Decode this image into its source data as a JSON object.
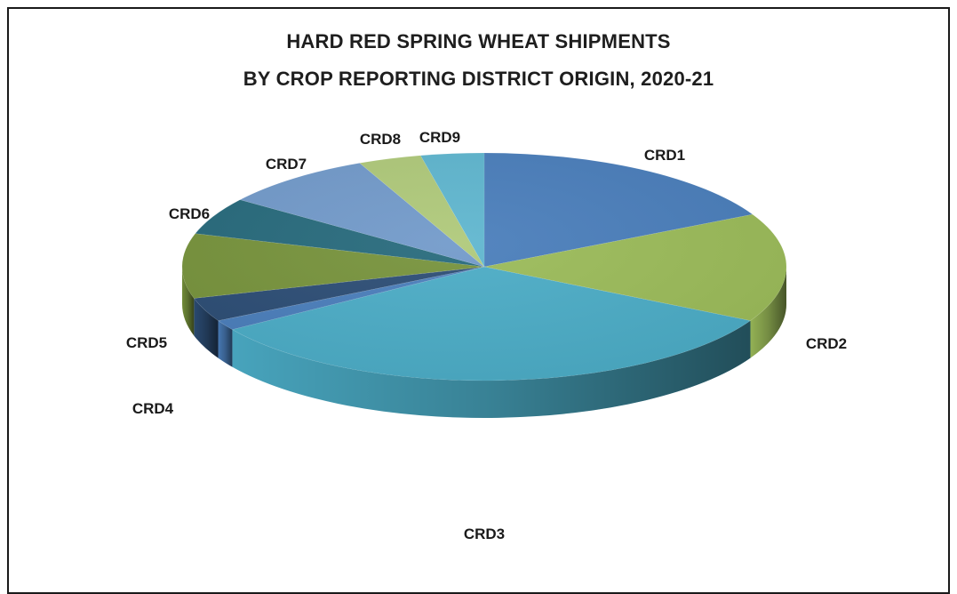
{
  "chart_data": {
    "type": "pie",
    "title_line1": "HARD RED SPRING WHEAT SHIPMENTS",
    "title_line2": "BY CROP REPORTING DISTRICT ORIGIN, 2020-21",
    "slices": [
      {
        "label": "CRD1",
        "value": 18.0,
        "color": "#4a7ebb"
      },
      {
        "label": "CRD2",
        "value": 16.0,
        "color": "#9bbb59"
      },
      {
        "label": "CRD3",
        "value": 34.0,
        "color": "#4bacc6"
      },
      {
        "label": "CRD4",
        "value": 1.5,
        "color": "#4a7ebb"
      },
      {
        "label": "CRD5",
        "value": 3.5,
        "color": "#2c4d75"
      },
      {
        "label": "CRD6",
        "value": 9.5,
        "color": "#77933c"
      },
      {
        "label": "CRD7",
        "value": 5.5,
        "color": "#276a7c"
      },
      {
        "label": "CRD8",
        "value": 8.5,
        "color": "#729aca"
      },
      {
        "label": "CRD9",
        "value": 3.5,
        "color": "#afc97a"
      },
      {
        "label": "",
        "value": 3.5,
        "color": "#5fb6cf"
      }
    ]
  }
}
